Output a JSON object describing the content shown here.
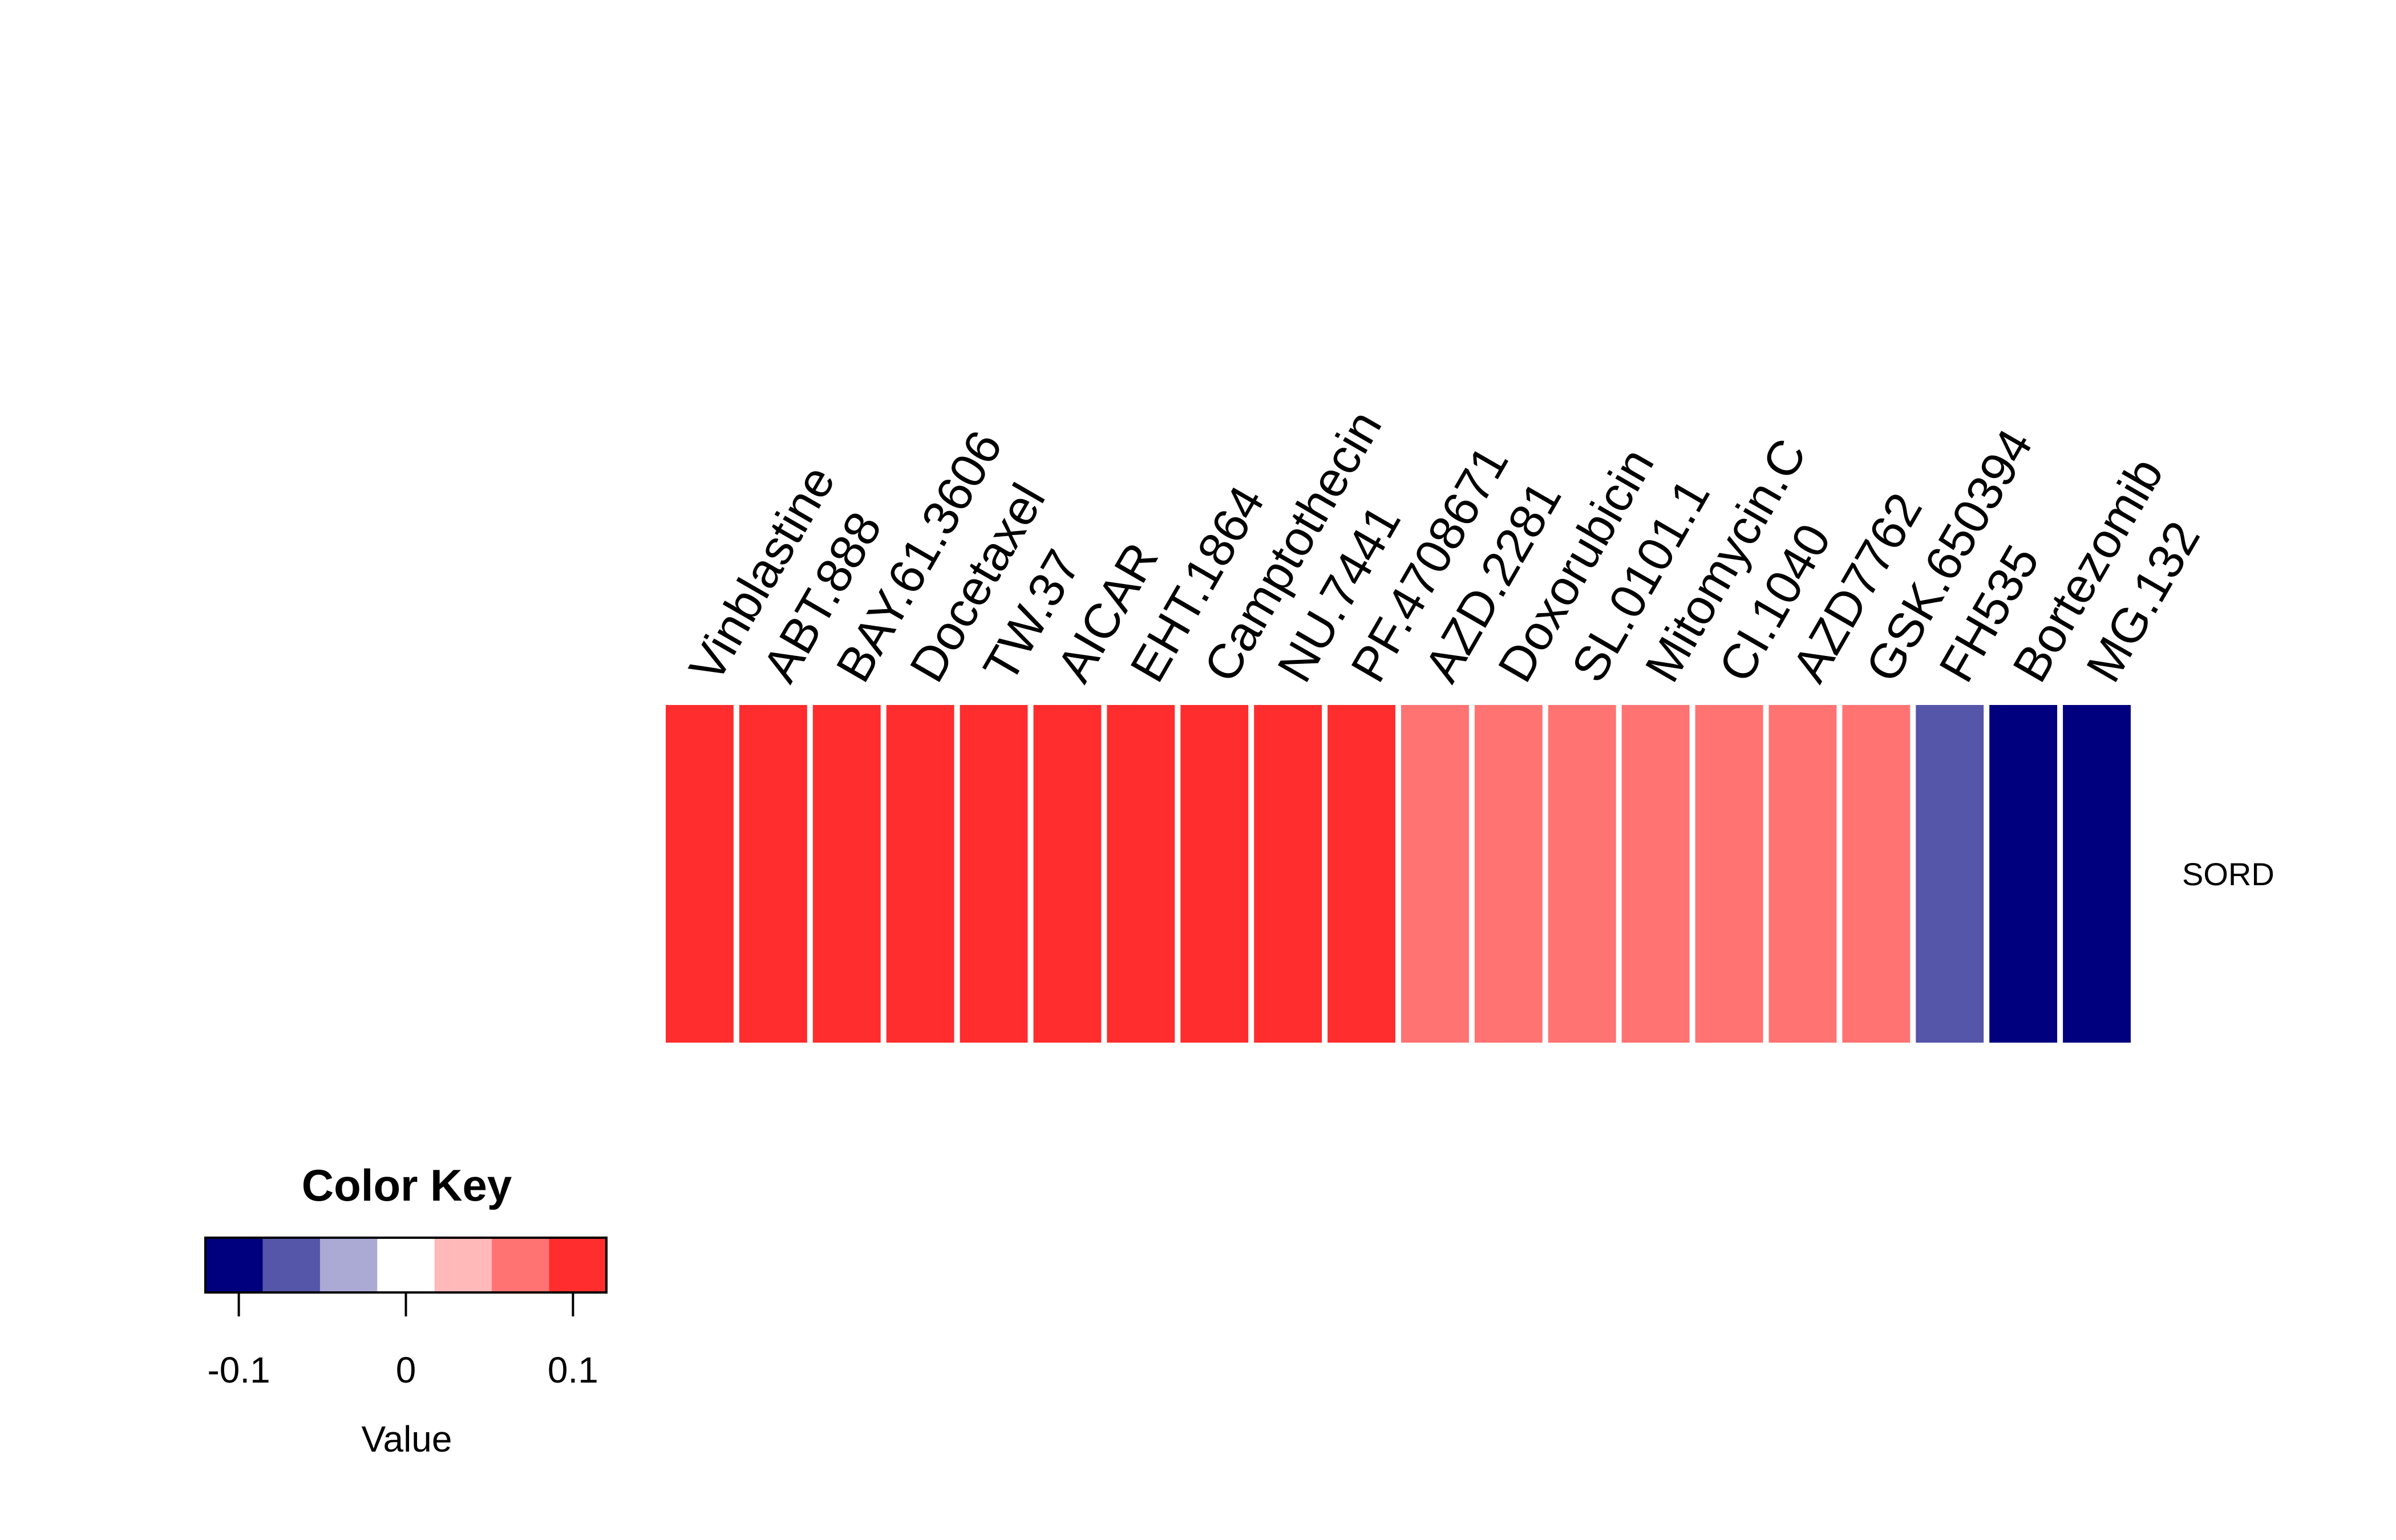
{
  "chart_data": {
    "type": "heatmap",
    "rows": [
      "SORD"
    ],
    "columns": [
      "Vinblastine",
      "ABT.888",
      "BAY.61.3606",
      "Docetaxel",
      "TW.37",
      "AICAR",
      "EHT.1864",
      "Camptothecin",
      "NU.7441",
      "PF.4708671",
      "AZD.2281",
      "Doxorubicin",
      "SL.0101.1",
      "Mitomycin.C",
      "CI.1040",
      "AZD7762",
      "GSK.650394",
      "FH535",
      "Bortezomib",
      "MG.132"
    ],
    "values": [
      [
        0.12,
        0.12,
        0.12,
        0.12,
        0.12,
        0.12,
        0.12,
        0.12,
        0.12,
        0.12,
        0.08,
        0.08,
        0.08,
        0.08,
        0.08,
        0.08,
        0.08,
        -0.08,
        -0.12,
        -0.12
      ]
    ],
    "color_key": {
      "title": "Color Key",
      "xlabel": "Value",
      "range": [
        -0.12,
        0.12
      ],
      "bins": 7,
      "colors": [
        "#00007F",
        "#5555AA",
        "#AAAAD4",
        "#FFFFFF",
        "#FFB9B9",
        "#FF7373",
        "#FF2D2D"
      ],
      "ticks": [
        -0.1,
        0,
        0.1
      ],
      "tick_labels": [
        "-0.1",
        "0",
        "0.1"
      ]
    },
    "legend_position": "bottom-left",
    "grid": false
  }
}
